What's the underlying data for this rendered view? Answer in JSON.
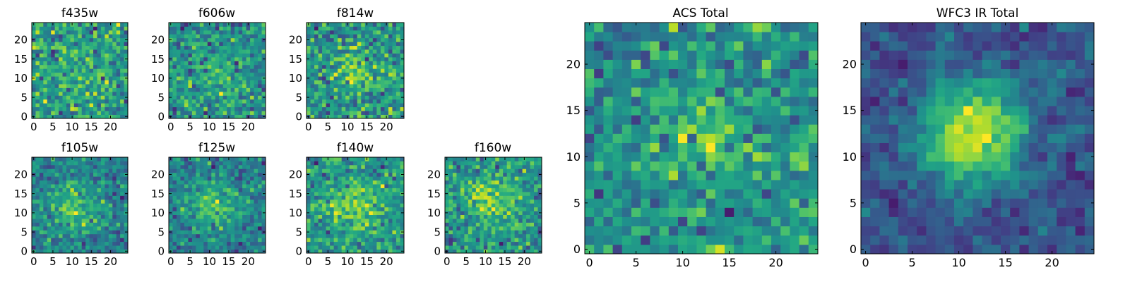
{
  "chart_data": [
    {
      "type": "heatmap",
      "title": "f435w",
      "size": 25,
      "seed": 11,
      "blob": [
        12,
        12,
        0.3,
        4
      ],
      "noise": 0.5,
      "xticks": [
        0,
        5,
        10,
        15,
        20
      ],
      "yticks": [
        0,
        5,
        10,
        15,
        20
      ],
      "xlim": [
        0,
        25
      ],
      "ylim": [
        0,
        25
      ]
    },
    {
      "type": "heatmap",
      "title": "f606w",
      "size": 25,
      "seed": 23,
      "blob": [
        12,
        11,
        0.5,
        4
      ],
      "noise": 0.5,
      "xticks": [
        0,
        5,
        10,
        15,
        20
      ],
      "yticks": [
        0,
        5,
        10,
        15,
        20
      ],
      "xlim": [
        0,
        25
      ],
      "ylim": [
        0,
        25
      ]
    },
    {
      "type": "heatmap",
      "title": "f814w",
      "size": 25,
      "seed": 37,
      "blob": [
        13,
        12,
        0.6,
        4
      ],
      "noise": 0.5,
      "xticks": [
        0,
        5,
        10,
        15,
        20
      ],
      "yticks": [
        0,
        5,
        10,
        15,
        20
      ],
      "xlim": [
        0,
        25
      ],
      "ylim": [
        0,
        25
      ]
    },
    {
      "type": "heatmap",
      "title": "f105w",
      "size": 25,
      "seed": 41,
      "blob": [
        11,
        11,
        0.9,
        4.5
      ],
      "noise": 0.4,
      "xticks": [
        0,
        5,
        10,
        15,
        20
      ],
      "yticks": [
        0,
        5,
        10,
        15,
        20
      ],
      "xlim": [
        0,
        25
      ],
      "ylim": [
        0,
        25
      ]
    },
    {
      "type": "heatmap",
      "title": "f125w",
      "size": 25,
      "seed": 53,
      "blob": [
        11,
        12,
        0.9,
        4.5
      ],
      "noise": 0.4,
      "xticks": [
        0,
        5,
        10,
        15,
        20
      ],
      "yticks": [
        0,
        5,
        10,
        15,
        20
      ],
      "xlim": [
        0,
        25
      ],
      "ylim": [
        0,
        25
      ]
    },
    {
      "type": "heatmap",
      "title": "f140w",
      "size": 25,
      "seed": 67,
      "blob": [
        12,
        12,
        0.8,
        4.5
      ],
      "noise": 0.45,
      "xticks": [
        0,
        5,
        10,
        15,
        20
      ],
      "yticks": [
        0,
        5,
        10,
        15,
        20
      ],
      "xlim": [
        0,
        25
      ],
      "ylim": [
        0,
        25
      ]
    },
    {
      "type": "heatmap",
      "title": "f160w",
      "size": 25,
      "seed": 79,
      "blob": [
        11,
        13,
        0.9,
        4
      ],
      "noise": 0.4,
      "xticks": [
        0,
        5,
        10,
        15,
        20
      ],
      "yticks": [
        0,
        5,
        10,
        15,
        20
      ],
      "xlim": [
        0,
        25
      ],
      "ylim": [
        0,
        25
      ]
    },
    {
      "type": "heatmap",
      "title": "ACS Total",
      "size": 25,
      "seed": 97,
      "blob": [
        13,
        12,
        0.6,
        4
      ],
      "noise": 0.45,
      "xticks": [
        0,
        5,
        10,
        15,
        20
      ],
      "yticks": [
        0,
        5,
        10,
        15,
        20
      ],
      "xlim": [
        0,
        25
      ],
      "ylim": [
        0,
        25
      ]
    },
    {
      "type": "heatmap",
      "title": "WFC3 IR Total",
      "size": 25,
      "seed": 131,
      "blob": [
        11.5,
        12.5,
        1.1,
        3.8
      ],
      "noise": 0.2,
      "xticks": [
        0,
        5,
        10,
        15,
        20
      ],
      "yticks": [
        0,
        5,
        10,
        15,
        20
      ],
      "xlim": [
        0,
        25
      ],
      "ylim": [
        0,
        25
      ]
    }
  ]
}
